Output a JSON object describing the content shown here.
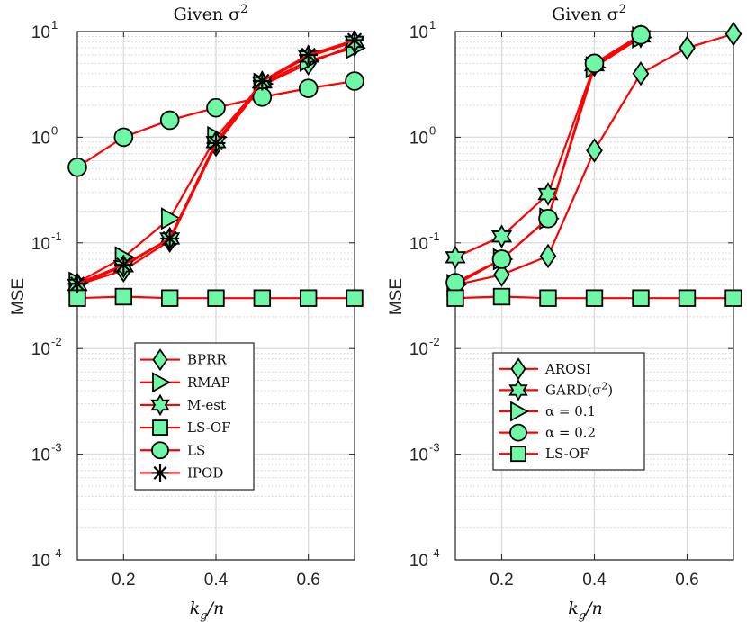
{
  "chart_data": [
    {
      "type": "line",
      "title": "Given σ²",
      "title_main": "Given σ",
      "title_sup": "2",
      "xlabel_main": "k",
      "xlabel_sub": "g",
      "xlabel_tail": "/n",
      "ylabel": "MSE",
      "xlim": [
        0.1,
        0.7
      ],
      "ylim": [
        0.0001,
        10
      ],
      "yscale": "log",
      "x_ticks": [
        0.2,
        0.4,
        0.6
      ],
      "x_tick_labels": [
        "0.2",
        "0.4",
        "0.6"
      ],
      "y_ticks": [
        {
          "base": "10",
          "exp": "-4",
          "v": 0.0001
        },
        {
          "base": "10",
          "exp": "-3",
          "v": 0.001
        },
        {
          "base": "10",
          "exp": "-2",
          "v": 0.01
        },
        {
          "base": "10",
          "exp": "-1",
          "v": 0.1
        },
        {
          "base": "10",
          "exp": "0",
          "v": 1
        },
        {
          "base": "10",
          "exp": "1",
          "v": 10
        }
      ],
      "grid": true,
      "legend_position": "lower-center",
      "line_color": "#ff0000",
      "marker_fill": "#6ef7a4",
      "x": [
        0.1,
        0.2,
        0.3,
        0.4,
        0.5,
        0.6,
        0.7
      ],
      "series": [
        {
          "name": "BPRR",
          "marker": "diamond",
          "values": [
            0.04,
            0.055,
            0.105,
            0.85,
            3.1,
            5.0,
            7.5
          ]
        },
        {
          "name": "RMAP",
          "marker": "triangle-right",
          "values": [
            0.042,
            0.073,
            0.17,
            1.0,
            3.2,
            5.3,
            7.0
          ]
        },
        {
          "name": "M-est",
          "marker": "hexagram",
          "values": [
            0.04,
            0.06,
            0.11,
            0.9,
            3.3,
            5.8,
            8.0
          ]
        },
        {
          "name": "LS-OF",
          "marker": "square",
          "values": [
            0.03,
            0.031,
            0.03,
            0.03,
            0.03,
            0.03,
            0.03
          ]
        },
        {
          "name": "LS",
          "marker": "circle",
          "values": [
            0.52,
            1.0,
            1.45,
            1.9,
            2.4,
            2.9,
            3.4
          ]
        },
        {
          "name": "IPOD",
          "marker": "asterisk",
          "values": [
            0.041,
            0.062,
            0.11,
            0.88,
            3.4,
            6.0,
            8.3
          ]
        }
      ]
    },
    {
      "type": "line",
      "title": "Given σ²",
      "title_main": "Given σ",
      "title_sup": "2",
      "xlabel_main": "k",
      "xlabel_sub": "g",
      "xlabel_tail": "/n",
      "ylabel": "MSE",
      "xlim": [
        0.1,
        0.7
      ],
      "ylim": [
        0.0001,
        10
      ],
      "yscale": "log",
      "x_ticks": [
        0.2,
        0.4,
        0.6
      ],
      "x_tick_labels": [
        "0.2",
        "0.4",
        "0.6"
      ],
      "y_ticks": [
        {
          "base": "10",
          "exp": "-4",
          "v": 0.0001
        },
        {
          "base": "10",
          "exp": "-3",
          "v": 0.001
        },
        {
          "base": "10",
          "exp": "-2",
          "v": 0.01
        },
        {
          "base": "10",
          "exp": "-1",
          "v": 0.1
        },
        {
          "base": "10",
          "exp": "0",
          "v": 1
        },
        {
          "base": "10",
          "exp": "1",
          "v": 10
        }
      ],
      "grid": true,
      "legend_position": "lower-center",
      "line_color": "#ff0000",
      "marker_fill": "#6ef7a4",
      "x": [
        0.1,
        0.2,
        0.3,
        0.4,
        0.5,
        0.6,
        0.7
      ],
      "series": [
        {
          "name": "AROSI",
          "label_main": "AROSI",
          "marker": "diamond",
          "x": [
            0.1,
            0.2,
            0.3,
            0.4,
            0.5,
            0.6,
            0.7
          ],
          "values": [
            0.04,
            0.05,
            0.075,
            0.75,
            4.0,
            7.0,
            9.5
          ]
        },
        {
          "name": "GARD(σ²)",
          "label_main": "GARD(σ",
          "label_sup": "2",
          "label_tail": ")",
          "marker": "hexagram",
          "x": [
            0.1,
            0.2,
            0.3,
            0.4,
            0.5
          ],
          "values": [
            0.073,
            0.115,
            0.29,
            4.8,
            9.0
          ]
        },
        {
          "name": "α = 0.1",
          "label_main": "α = 0.1",
          "marker": "triangle-right",
          "x": [
            0.1,
            0.2,
            0.3,
            0.4,
            0.5
          ],
          "values": [
            0.04,
            0.07,
            0.17,
            4.6,
            8.8
          ]
        },
        {
          "name": "α = 0.2",
          "label_main": "α = 0.2",
          "marker": "circle",
          "x": [
            0.1,
            0.2,
            0.3,
            0.4,
            0.5
          ],
          "values": [
            0.042,
            0.07,
            0.17,
            5.0,
            9.3
          ]
        },
        {
          "name": "LS-OF",
          "label_main": "LS-OF",
          "marker": "square",
          "x": [
            0.1,
            0.2,
            0.3,
            0.4,
            0.5,
            0.6,
            0.7
          ],
          "values": [
            0.03,
            0.031,
            0.03,
            0.03,
            0.03,
            0.03,
            0.03
          ]
        }
      ]
    }
  ]
}
